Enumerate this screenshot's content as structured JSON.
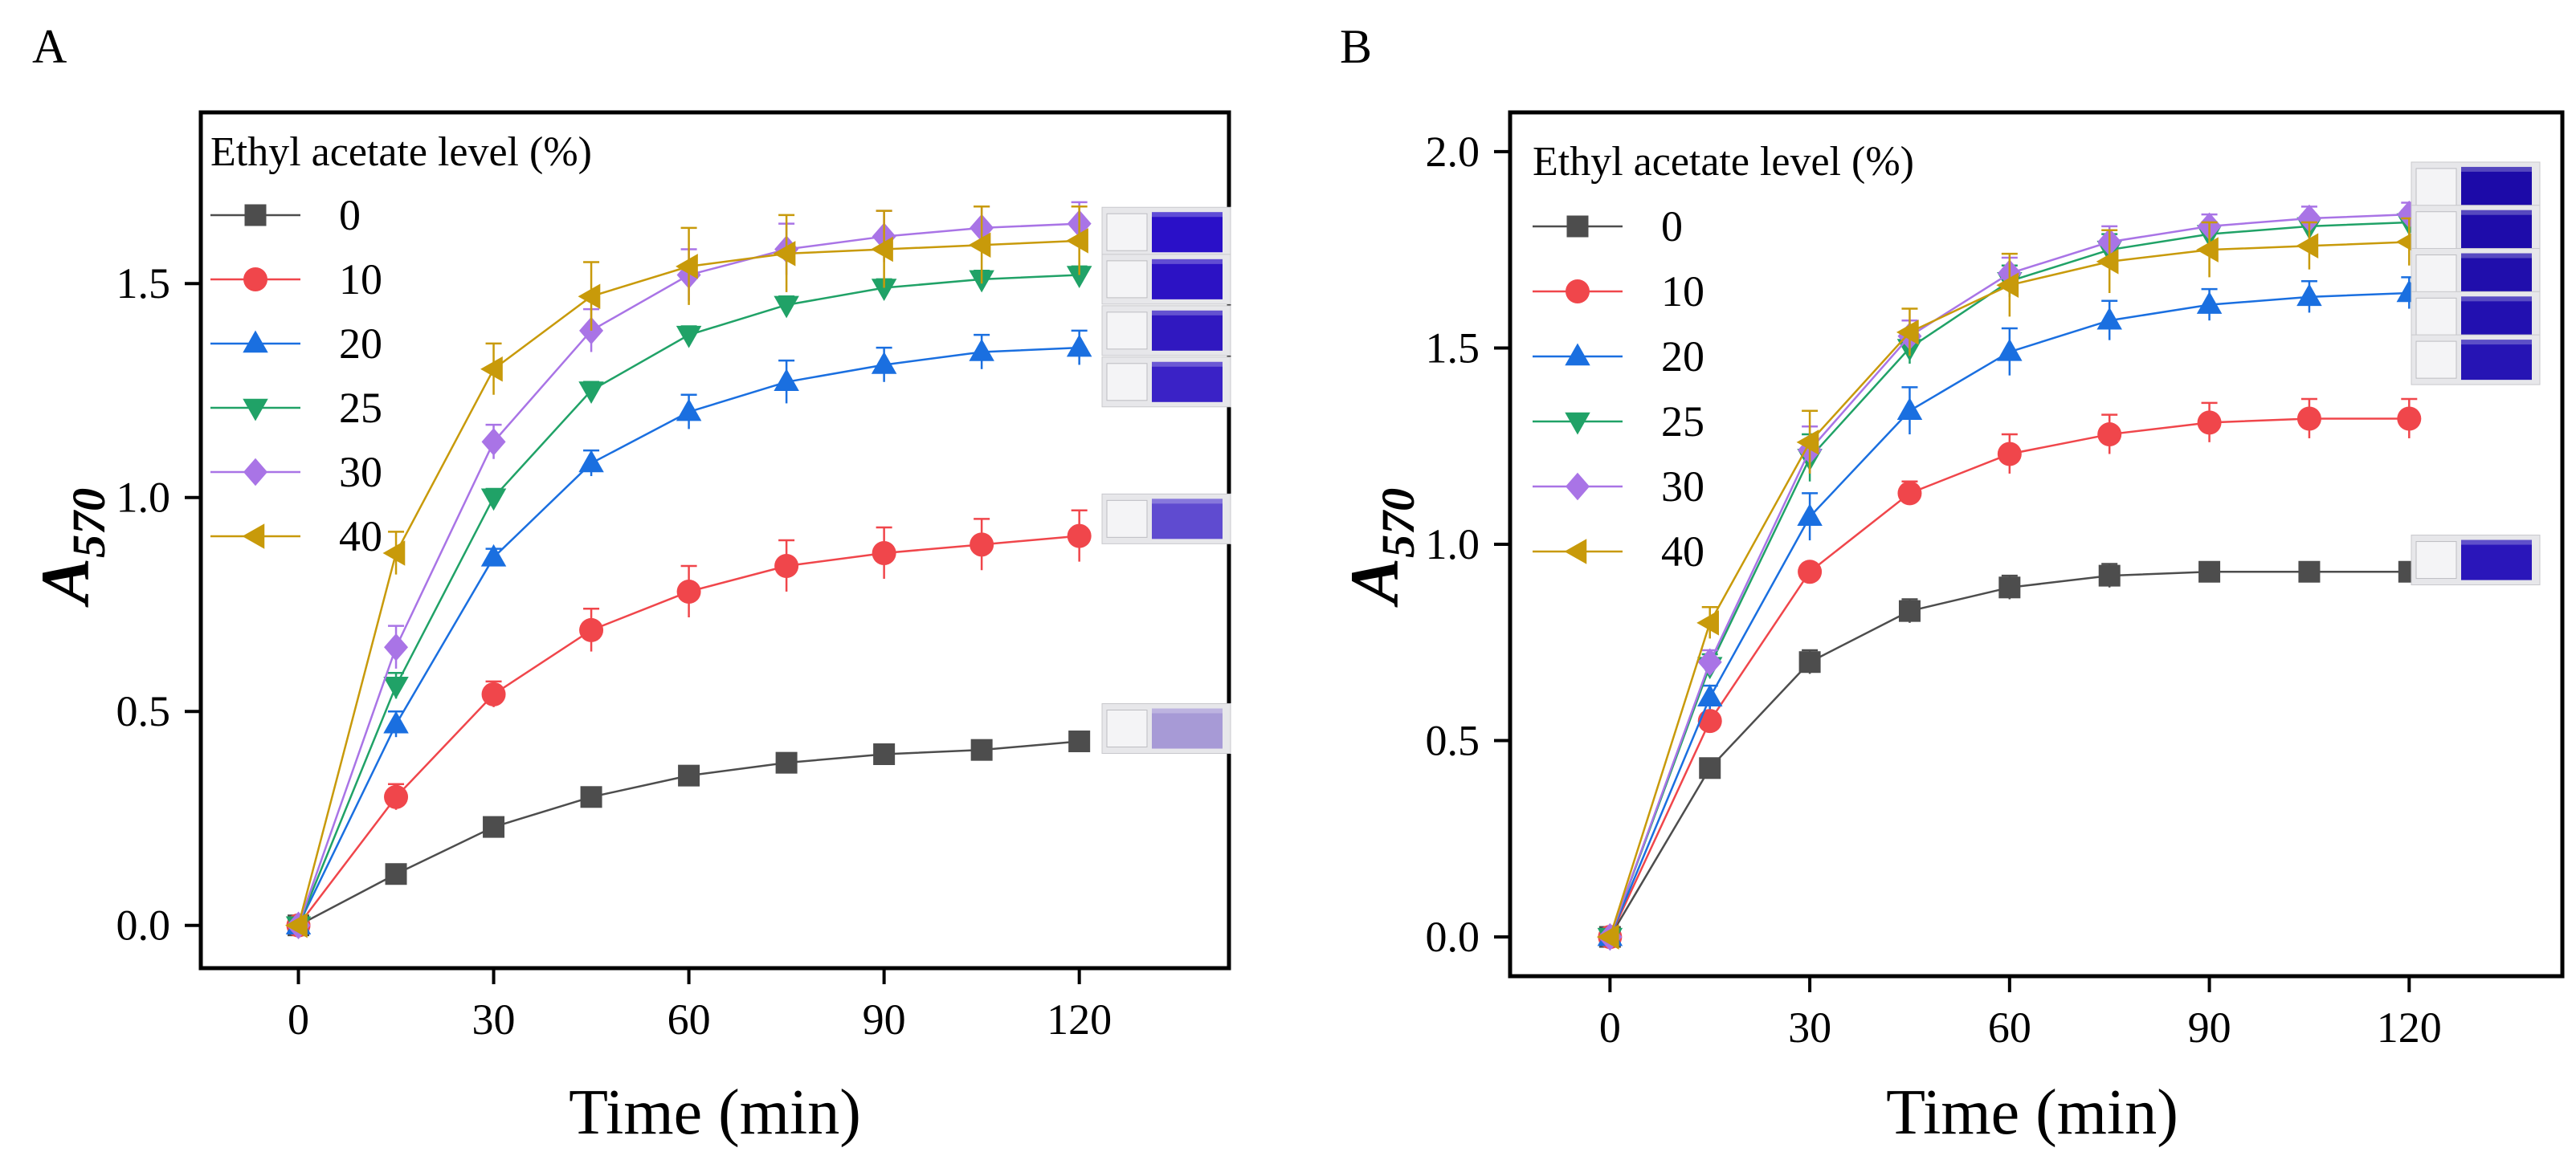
{
  "chart_data": [
    {
      "type": "line",
      "panel_label": "A",
      "xlabel": "Time (min)",
      "ylabel_main": "A",
      "ylabel_sub": "570",
      "x": [
        0,
        15,
        30,
        45,
        60,
        75,
        90,
        105,
        120
      ],
      "xticks": [
        "0",
        "30",
        "60",
        "90",
        "120"
      ],
      "xtick_values": [
        0,
        30,
        60,
        90,
        120
      ],
      "xlim": [
        -15,
        143
      ],
      "yticks": [
        "0.0",
        "0.5",
        "1.0",
        "1.5"
      ],
      "ytick_values": [
        0,
        0.5,
        1.0,
        1.5
      ],
      "ylim": [
        -0.1,
        1.9
      ],
      "legend_title": "Ethyl acetate level (%)",
      "legend_position": "top-left",
      "series": [
        {
          "name": "0",
          "marker": "square",
          "color": "#4d4d4d",
          "values": [
            0,
            0.12,
            0.23,
            0.3,
            0.35,
            0.38,
            0.4,
            0.41,
            0.43
          ],
          "errors": [
            0,
            0.015,
            0.015,
            0.015,
            0.015,
            0.015,
            0.015,
            0.015,
            0.015
          ]
        },
        {
          "name": "10",
          "marker": "circle",
          "color": "#f0464b",
          "values": [
            0,
            0.3,
            0.54,
            0.69,
            0.78,
            0.84,
            0.87,
            0.89,
            0.91
          ],
          "errors": [
            0,
            0.03,
            0.03,
            0.05,
            0.06,
            0.06,
            0.06,
            0.06,
            0.06
          ]
        },
        {
          "name": "20",
          "marker": "triangle-up",
          "color": "#1a6fe0",
          "values": [
            0,
            0.47,
            0.86,
            1.08,
            1.2,
            1.27,
            1.31,
            1.34,
            1.35
          ],
          "errors": [
            0,
            0.03,
            0.02,
            0.03,
            0.04,
            0.05,
            0.04,
            0.04,
            0.04
          ]
        },
        {
          "name": "25",
          "marker": "triangle-down",
          "color": "#20a267",
          "values": [
            0,
            0.56,
            1.0,
            1.25,
            1.38,
            1.45,
            1.49,
            1.51,
            1.52
          ],
          "errors": [
            0,
            0.03,
            0.02,
            0.02,
            0.02,
            0.02,
            0.02,
            0.02,
            0.02
          ]
        },
        {
          "name": "30",
          "marker": "diamond",
          "color": "#a974e6",
          "values": [
            0,
            0.65,
            1.13,
            1.39,
            1.52,
            1.58,
            1.61,
            1.63,
            1.64
          ],
          "errors": [
            0,
            0.05,
            0.04,
            0.05,
            0.06,
            0.06,
            0.06,
            0.05,
            0.05
          ]
        },
        {
          "name": "40",
          "marker": "triangle-left",
          "color": "#c89a0a",
          "values": [
            0,
            0.87,
            1.3,
            1.47,
            1.54,
            1.57,
            1.58,
            1.59,
            1.6
          ],
          "errors": [
            0,
            0.05,
            0.06,
            0.08,
            0.09,
            0.09,
            0.09,
            0.09,
            0.08
          ]
        }
      ],
      "inset_vials": [
        {
          "series": "40",
          "value": 1.62,
          "tint": "#2a10c8"
        },
        {
          "series": "30",
          "value": 1.51,
          "tint": "#2c12c4"
        },
        {
          "series": "25",
          "value": 1.39,
          "tint": "#3018c0"
        },
        {
          "series": "20",
          "value": 1.27,
          "tint": "#3a22c6"
        },
        {
          "series": "10",
          "value": 0.95,
          "tint": "#5f4bd0"
        },
        {
          "series": "0",
          "value": 0.46,
          "tint": "#a79ad6"
        }
      ]
    },
    {
      "type": "line",
      "panel_label": "B",
      "xlabel": "Time (min)",
      "ylabel_main": "A",
      "ylabel_sub": "570",
      "x": [
        0,
        15,
        30,
        45,
        60,
        75,
        90,
        105,
        120
      ],
      "xticks": [
        "0",
        "30",
        "60",
        "90",
        "120"
      ],
      "xtick_values": [
        0,
        30,
        60,
        90,
        120
      ],
      "xlim": [
        -15,
        143
      ],
      "yticks": [
        "0.0",
        "0.5",
        "1.0",
        "1.5",
        "2.0"
      ],
      "ytick_values": [
        0,
        0.5,
        1.0,
        1.5,
        2.0
      ],
      "ylim": [
        -0.1,
        2.1
      ],
      "legend_title": "Ethyl acetate level (%)",
      "legend_position": "top-left",
      "series": [
        {
          "name": "0",
          "marker": "square",
          "color": "#4d4d4d",
          "values": [
            0,
            0.43,
            0.7,
            0.83,
            0.89,
            0.92,
            0.93,
            0.93,
            0.93
          ],
          "errors": [
            0,
            0.02,
            0.03,
            0.03,
            0.03,
            0.03,
            0.02,
            0.02,
            0.02
          ]
        },
        {
          "name": "10",
          "marker": "circle",
          "color": "#f0464b",
          "values": [
            0,
            0.55,
            0.93,
            1.13,
            1.23,
            1.28,
            1.31,
            1.32,
            1.32
          ],
          "errors": [
            0,
            0.02,
            0.02,
            0.03,
            0.05,
            0.05,
            0.05,
            0.05,
            0.05
          ]
        },
        {
          "name": "20",
          "marker": "triangle-up",
          "color": "#1a6fe0",
          "values": [
            0,
            0.61,
            1.07,
            1.34,
            1.49,
            1.57,
            1.61,
            1.63,
            1.64
          ],
          "errors": [
            0,
            0.03,
            0.06,
            0.06,
            0.06,
            0.05,
            0.04,
            0.04,
            0.04
          ]
        },
        {
          "name": "25",
          "marker": "triangle-down",
          "color": "#20a267",
          "values": [
            0,
            0.69,
            1.22,
            1.5,
            1.67,
            1.75,
            1.79,
            1.81,
            1.82
          ],
          "errors": [
            0,
            0.03,
            0.06,
            0.04,
            0.04,
            0.04,
            0.03,
            0.03,
            0.03
          ]
        },
        {
          "name": "30",
          "marker": "diamond",
          "color": "#a974e6",
          "values": [
            0,
            0.7,
            1.24,
            1.53,
            1.69,
            1.77,
            1.81,
            1.83,
            1.84
          ],
          "errors": [
            0,
            0.03,
            0.06,
            0.04,
            0.04,
            0.04,
            0.03,
            0.03,
            0.03
          ]
        },
        {
          "name": "40",
          "marker": "triangle-left",
          "color": "#c89a0a",
          "values": [
            0,
            0.8,
            1.26,
            1.54,
            1.66,
            1.72,
            1.75,
            1.76,
            1.77
          ],
          "errors": [
            0,
            0.04,
            0.08,
            0.06,
            0.08,
            0.08,
            0.07,
            0.06,
            0.06
          ]
        }
      ],
      "inset_vials": [
        {
          "series": "30",
          "value": 1.91,
          "tint": "#1c0aa8"
        },
        {
          "series": "25",
          "value": 1.8,
          "tint": "#1e0caa"
        },
        {
          "series": "40",
          "value": 1.69,
          "tint": "#200eac"
        },
        {
          "series": "20",
          "value": 1.58,
          "tint": "#2210b0"
        },
        {
          "series": "10",
          "value": 1.47,
          "tint": "#2614b4"
        },
        {
          "series": "0",
          "value": 0.96,
          "tint": "#2a16ba"
        }
      ]
    }
  ]
}
